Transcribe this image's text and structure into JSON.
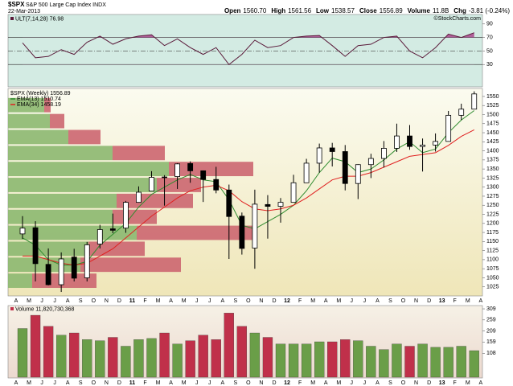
{
  "header": {
    "symbol": "$SPX",
    "name": "S&P 500 Large Cap Index INDX",
    "date": "22-Mar-2013",
    "credit": "©StockCharts.com",
    "quote": [
      [
        "Open",
        "1560.70"
      ],
      [
        "High",
        "1561.56"
      ],
      [
        "Low",
        "1538.57"
      ],
      [
        "Close",
        "1556.89"
      ],
      [
        "Volume",
        "11.8B"
      ],
      [
        "Chg",
        "-3.81 (-0.24%)"
      ]
    ]
  },
  "chart_data": [
    {
      "type": "line",
      "legend": "ULT(7,14,28) 76.98",
      "color": "#5a1a3a",
      "fill_color": "#b0609a",
      "categories": [
        "A",
        "M",
        "J",
        "J",
        "A",
        "S",
        "O",
        "N",
        "D",
        "11",
        "F",
        "M",
        "A",
        "M",
        "J",
        "J",
        "A",
        "S",
        "O",
        "N",
        "D",
        "12",
        "F",
        "M",
        "A",
        "M",
        "J",
        "J",
        "A",
        "S",
        "O",
        "N",
        "D",
        "13",
        "F",
        "M",
        "A"
      ],
      "values": [
        62,
        40,
        42,
        52,
        45,
        63,
        72,
        60,
        68,
        72,
        74,
        58,
        68,
        55,
        45,
        55,
        30,
        45,
        66,
        55,
        58,
        70,
        72,
        73,
        58,
        42,
        58,
        60,
        70,
        72,
        50,
        40,
        55,
        75,
        70,
        77,
        null
      ],
      "ylim": [
        -3,
        104
      ],
      "yticks": [
        30,
        50,
        70,
        90
      ],
      "reference_lines": [
        70,
        50,
        30
      ]
    },
    {
      "type": "candlestick",
      "legend": "$SPX (Weekly) 1556.89",
      "categories": [
        "A",
        "M",
        "J",
        "J",
        "A",
        "S",
        "O",
        "N",
        "D",
        "11",
        "F",
        "M",
        "A",
        "M",
        "J",
        "J",
        "A",
        "S",
        "O",
        "N",
        "D",
        "12",
        "F",
        "M",
        "A",
        "M",
        "J",
        "J",
        "A",
        "S",
        "O",
        "N",
        "D",
        "13",
        "F",
        "M",
        "A"
      ],
      "open": [
        1171,
        1188,
        1087,
        1031,
        1107,
        1050,
        1143,
        1185,
        1187,
        1258,
        1289,
        1328,
        1329,
        1365,
        1345,
        1321,
        1292,
        1220,
        1132,
        1252,
        1247,
        1258,
        1312,
        1366,
        1408,
        1398,
        1310,
        1362,
        1379,
        1407,
        1441,
        1412,
        1416,
        1426,
        1498,
        1515,
        null
      ],
      "high": [
        1220,
        1206,
        1131,
        1120,
        1130,
        1149,
        1196,
        1227,
        1262,
        1302,
        1344,
        1333,
        1366,
        1371,
        1346,
        1356,
        1307,
        1230,
        1293,
        1278,
        1270,
        1334,
        1378,
        1420,
        1422,
        1416,
        1363,
        1392,
        1427,
        1475,
        1471,
        1434,
        1448,
        1510,
        1530,
        1564,
        null
      ],
      "low": [
        1157,
        1040,
        1029,
        1011,
        1040,
        1040,
        1131,
        1173,
        1174,
        1257,
        1289,
        1249,
        1295,
        1312,
        1259,
        1283,
        1102,
        1114,
        1075,
        1158,
        1202,
        1258,
        1312,
        1340,
        1357,
        1291,
        1267,
        1325,
        1354,
        1397,
        1403,
        1343,
        1398,
        1426,
        1485,
        1515,
        null
      ],
      "close": [
        1187,
        1089,
        1031,
        1102,
        1049,
        1141,
        1183,
        1181,
        1258,
        1286,
        1327,
        1326,
        1364,
        1345,
        1321,
        1292,
        1219,
        1131,
        1253,
        1247,
        1258,
        1312,
        1366,
        1408,
        1398,
        1310,
        1362,
        1379,
        1407,
        1441,
        1412,
        1416,
        1426,
        1498,
        1515,
        1556.89,
        null
      ],
      "series": [
        {
          "name": "EMA(13) 1510.74",
          "color": "#2e8b2e",
          "values": [
            1160,
            1140,
            1100,
            1085,
            1085,
            1095,
            1140,
            1170,
            1200,
            1245,
            1280,
            1300,
            1320,
            1335,
            1320,
            1315,
            1265,
            1195,
            1185,
            1205,
            1225,
            1250,
            1290,
            1340,
            1380,
            1370,
            1340,
            1350,
            1375,
            1405,
            1425,
            1395,
            1405,
            1450,
            1485,
            1511,
            null
          ]
        },
        {
          "name": "EMA(34) 1458.19",
          "color": "#e02020",
          "values": [
            1110,
            1110,
            1100,
            1090,
            1085,
            1090,
            1110,
            1130,
            1160,
            1190,
            1220,
            1245,
            1270,
            1290,
            1300,
            1305,
            1290,
            1260,
            1240,
            1235,
            1240,
            1250,
            1270,
            1295,
            1320,
            1330,
            1330,
            1340,
            1355,
            1370,
            1385,
            1390,
            1395,
            1415,
            1440,
            1458,
            null
          ]
        }
      ],
      "volume_by_price": {
        "bins": [
          1020,
          1064,
          1108,
          1152,
          1196,
          1240,
          1284,
          1328,
          1372,
          1416,
          1460,
          1504,
          1548
        ],
        "up": [
          3.0,
          9.0,
          10.0,
          16.0,
          13.0,
          13.5,
          18.5,
          20.0,
          13.0,
          7.5,
          5.2,
          4.5
        ],
        "down": [
          8.0,
          12.5,
          7.0,
          14.5,
          5.5,
          9.5,
          5.5,
          10.5,
          6.5,
          4.0,
          1.8,
          0.8
        ],
        "up_color": "#8cb870",
        "down_color": "#cc6670"
      },
      "ylim": [
        1000,
        1572
      ],
      "yticks": [
        1025,
        1050,
        1075,
        1100,
        1125,
        1150,
        1175,
        1200,
        1225,
        1250,
        1275,
        1300,
        1325,
        1350,
        1375,
        1400,
        1425,
        1450,
        1475,
        1500,
        1525,
        1550
      ]
    },
    {
      "type": "bar",
      "legend": "Volume 11,820,730,368",
      "up_color": "#6a9e48",
      "down_color": "#c0304a",
      "categories": [
        "A",
        "M",
        "J",
        "J",
        "A",
        "S",
        "O",
        "N",
        "D",
        "11",
        "F",
        "M",
        "A",
        "M",
        "J",
        "J",
        "A",
        "S",
        "O",
        "N",
        "D",
        "12",
        "F",
        "M",
        "A",
        "M",
        "J",
        "J",
        "A",
        "S",
        "O",
        "N",
        "D",
        "13",
        "F",
        "M",
        "A"
      ],
      "values": [
        220,
        280,
        230,
        190,
        200,
        170,
        165,
        180,
        140,
        170,
        175,
        200,
        150,
        165,
        190,
        170,
        290,
        230,
        200,
        180,
        150,
        150,
        150,
        160,
        160,
        170,
        165,
        140,
        125,
        150,
        140,
        150,
        135,
        135,
        140,
        120,
        null
      ],
      "ylim": [
        0,
        331
      ],
      "yticks": [
        108,
        159,
        209,
        259,
        309
      ]
    }
  ]
}
